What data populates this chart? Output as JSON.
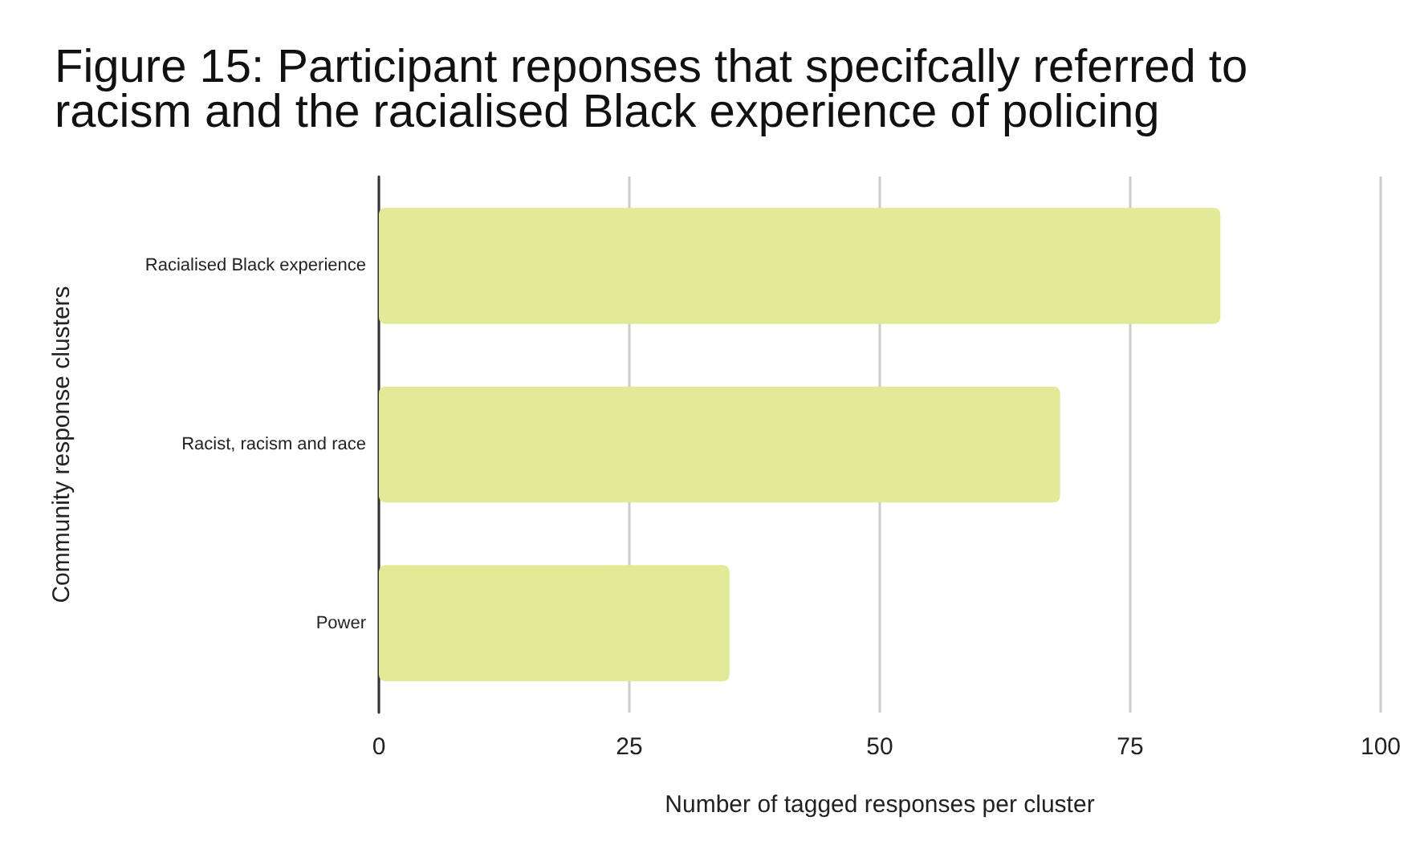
{
  "chart_data": {
    "type": "bar",
    "orientation": "horizontal",
    "title": "Figure 15: Participant reponses that specifcally referred to racism and the racialised Black experience of policing",
    "xlabel": "Number of tagged responses per cluster",
    "ylabel": "Community response clusters",
    "categories": [
      "Racialised Black experience",
      "Racist, racism and race",
      "Power"
    ],
    "values": [
      84,
      68,
      35
    ],
    "color": "#e2ea98",
    "xlim": [
      0,
      100
    ],
    "xticks": [
      0,
      25,
      50,
      75,
      100
    ],
    "grid": "x"
  }
}
